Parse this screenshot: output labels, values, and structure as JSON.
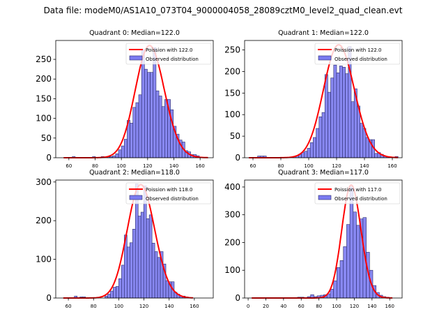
{
  "suptitle": "Data file: modeM0/AS1A10_073T04_9000004058_28089cztM0_level2_quad_clean.evt",
  "colors": {
    "bar_fill": "#7b7bf0",
    "bar_edge": "#2a2a6a",
    "poisson_line": "#ff0000"
  },
  "chart_data": [
    {
      "type": "bar",
      "title": "Quadrant 0: Median=122.0",
      "legend": [
        "Poission with 122.0",
        "Observed distribution"
      ],
      "legend_position": "top-right",
      "mean": 122.0,
      "xlim": [
        50,
        170
      ],
      "ylim": [
        0,
        298
      ],
      "xticks": [
        60,
        80,
        100,
        120,
        140,
        160
      ],
      "yticks": [
        0,
        50,
        100,
        150,
        200,
        250
      ],
      "bin_width": 2.2,
      "bins_start": [
        56,
        58.2,
        60.4,
        62.6,
        64.8,
        67,
        69.2,
        71.4,
        73.6,
        75.8,
        78,
        80.2,
        82.4,
        84.6,
        86.8,
        89,
        91.2,
        93.4,
        95.6,
        97.8,
        100,
        102.2,
        104.4,
        106.6,
        108.8,
        111,
        113.2,
        115.4,
        117.6,
        119.8,
        122,
        124.2,
        126.4,
        128.6,
        130.8,
        133,
        135.2,
        137.4,
        139.6,
        141.8,
        144,
        146.2,
        148.4,
        150.6,
        152.8,
        155,
        157.2,
        159.4,
        161.6,
        163.8
      ],
      "values": [
        0,
        0,
        0,
        3,
        0,
        0,
        0,
        0,
        0,
        0,
        3,
        0,
        0,
        3,
        0,
        2,
        3,
        5,
        10,
        20,
        30,
        47,
        95,
        88,
        128,
        140,
        160,
        275,
        225,
        217,
        217,
        280,
        170,
        157,
        130,
        148,
        148,
        122,
        80,
        60,
        45,
        40,
        18,
        15,
        8,
        8,
        5,
        0,
        0,
        0
      ],
      "poisson_peak": 285
    },
    {
      "type": "bar",
      "title": "Quadrant 1: Median=122.0",
      "legend": [
        "Poission with 122.0",
        "Observed distribution"
      ],
      "legend_position": "top-right",
      "mean": 122.0,
      "xlim": [
        54,
        167
      ],
      "ylim": [
        0,
        272
      ],
      "xticks": [
        60,
        80,
        100,
        120,
        140,
        160
      ],
      "yticks": [
        0,
        50,
        100,
        150,
        200,
        250
      ],
      "bin_width": 2.1,
      "bins_start": [
        57,
        59.1,
        61.2,
        63.3,
        65.4,
        67.5,
        69.6,
        71.7,
        73.8,
        75.9,
        78,
        80.1,
        82.2,
        84.3,
        86.4,
        88.5,
        90.6,
        92.7,
        94.8,
        96.9,
        99,
        101.1,
        103.2,
        105.3,
        107.4,
        109.5,
        111.6,
        113.7,
        115.8,
        117.9,
        120,
        122.1,
        124.2,
        126.3,
        128.4,
        130.5,
        132.6,
        134.7,
        136.8,
        138.9,
        141,
        143.1,
        145.2,
        147.3,
        149.4,
        151.5,
        153.6,
        155.7,
        157.8,
        159.9,
        162
      ],
      "values": [
        0,
        0,
        0,
        4,
        4,
        4,
        0,
        0,
        0,
        0,
        0,
        0,
        0,
        0,
        0,
        3,
        5,
        8,
        12,
        15,
        22,
        35,
        47,
        68,
        95,
        105,
        193,
        152,
        185,
        215,
        197,
        213,
        210,
        195,
        258,
        130,
        160,
        120,
        80,
        68,
        47,
        42,
        42,
        10,
        12,
        8,
        3,
        2,
        0,
        0,
        3
      ],
      "poisson_peak": 262
    },
    {
      "type": "bar",
      "title": "Quadrant 2: Median=118.0",
      "legend": [
        "Poission with 118.0",
        "Observed distribution"
      ],
      "legend_position": "top-right",
      "mean": 118.0,
      "xlim": [
        50,
        175
      ],
      "ylim": [
        0,
        305
      ],
      "xticks": [
        60,
        80,
        100,
        120,
        140,
        160
      ],
      "yticks": [
        0,
        100,
        200,
        300
      ],
      "bin_width": 2.2,
      "bins_start": [
        56,
        58.2,
        60.4,
        62.6,
        64.8,
        67,
        69.2,
        71.4,
        73.6,
        75.8,
        78,
        80.2,
        82.4,
        84.6,
        86.8,
        89,
        91.2,
        93.4,
        95.6,
        97.8,
        100,
        102.2,
        104.4,
        106.6,
        108.8,
        111,
        113.2,
        115.4,
        117.6,
        119.8,
        122,
        124.2,
        126.4,
        128.6,
        130.8,
        133,
        135.2,
        137.4,
        139.6,
        141.8,
        144,
        146.2,
        148.4,
        150.6,
        152.8,
        155,
        157.2
      ],
      "values": [
        0,
        0,
        0,
        0,
        5,
        0,
        3,
        3,
        0,
        0,
        0,
        0,
        0,
        0,
        0,
        5,
        10,
        18,
        28,
        30,
        50,
        85,
        163,
        132,
        143,
        178,
        295,
        212,
        222,
        290,
        205,
        215,
        142,
        120,
        105,
        120,
        88,
        45,
        42,
        42,
        15,
        10,
        5,
        5,
        3,
        0,
        0
      ],
      "poisson_peak": 293
    },
    {
      "type": "bar",
      "title": "Quadrant 3: Median=117.0",
      "legend": [
        "Poission with 117.0",
        "Observed distribution"
      ],
      "legend_position": "top-right",
      "mean": 117.0,
      "xlim": [
        -4,
        174
      ],
      "ylim": [
        0,
        425
      ],
      "xticks": [
        0,
        20,
        40,
        60,
        80,
        100,
        120,
        140,
        160
      ],
      "yticks": [
        0,
        100,
        200,
        300,
        400
      ],
      "bin_width": 3.7,
      "bins_start": [
        4,
        7.7,
        11.4,
        15.1,
        18.8,
        22.5,
        26.2,
        29.9,
        33.6,
        37.3,
        41,
        44.7,
        48.4,
        52.1,
        55.8,
        59.5,
        63.2,
        66.9,
        70.6,
        74.3,
        78,
        81.7,
        85.4,
        89.1,
        92.8,
        96.5,
        100.2,
        103.9,
        107.6,
        111.3,
        115,
        118.7,
        122.4,
        126.1,
        129.8,
        133.5,
        137.2,
        140.9,
        144.6,
        148.3,
        152,
        155.7,
        159.4
      ],
      "values": [
        0,
        0,
        0,
        0,
        0,
        0,
        0,
        0,
        0,
        0,
        0,
        0,
        0,
        0,
        3,
        3,
        0,
        5,
        12,
        5,
        8,
        10,
        12,
        15,
        32,
        62,
        110,
        135,
        185,
        265,
        400,
        310,
        262,
        285,
        290,
        165,
        100,
        45,
        20,
        10,
        5,
        3,
        0
      ],
      "poisson_peak": 407
    }
  ]
}
